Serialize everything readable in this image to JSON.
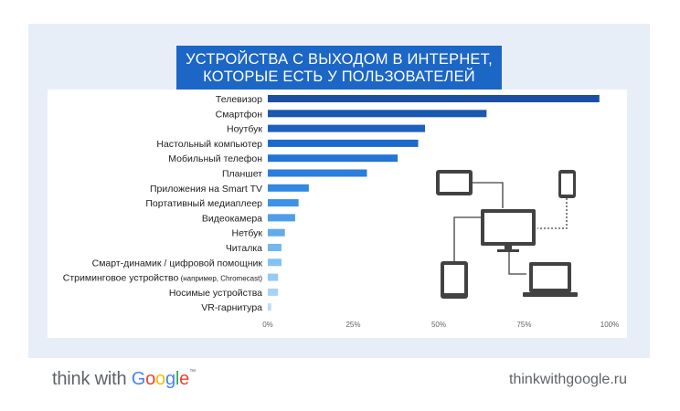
{
  "title": {
    "line1": "УСТРОЙСТВА С ВЫХОДОМ В ИНТЕРНЕТ,",
    "line2": "КОТОРЫЕ ЕСТЬ У ПОЛЬЗОВАТЕЛЕЙ"
  },
  "colors": {
    "panel_background": "#e8eef8",
    "title_background": "#1c66c6",
    "bar_gradient": [
      "#1a4fa3",
      "#1f6fd2",
      "#3b92e6",
      "#7cbdf0",
      "#b8dcf7"
    ],
    "icon_color": "#424242"
  },
  "chart_data": {
    "type": "bar",
    "orientation": "horizontal",
    "title": "УСТРОЙСТВА С ВЫХОДОМ В ИНТЕРНЕТ, КОТОРЫЕ ЕСТЬ У ПОЛЬЗОВАТЕЛЕЙ",
    "categories": [
      "Телевизор",
      "Смартфон",
      "Ноутбук",
      "Настольный компьютер",
      "Мобильный телефон",
      "Планшет",
      "Приложения на Smart TV",
      "Портативный медиаплеер",
      "Видеокамера",
      "Нетбук",
      "Читалка",
      "Смарт-динамик / цифровой помощник",
      "Стриминговое устройство",
      "Носимые устройства",
      "VR-гарнитура"
    ],
    "category_notes": [
      "",
      "",
      "",
      "",
      "",
      "",
      "",
      "",
      "",
      "",
      "",
      "",
      "(например, Chromecast)",
      "",
      ""
    ],
    "values": [
      97,
      64,
      46,
      44,
      38,
      29,
      12,
      9,
      8,
      5,
      4,
      4,
      3,
      3,
      1
    ],
    "unit": "%",
    "xlim": [
      0,
      100
    ],
    "xticks": [
      "0%",
      "25%",
      "50%",
      "75%",
      "100%"
    ],
    "xlabel": "",
    "ylabel": "",
    "grid": false,
    "legend": "none",
    "decoration": "connected device icons: laptop, tablet, smartphone, monitor"
  },
  "footer": {
    "brand_prefix": "think with ",
    "brand_letters": [
      "G",
      "o",
      "o",
      "g",
      "l",
      "e"
    ],
    "trademark": "™",
    "site": "thinkwithgoogle.ru"
  }
}
